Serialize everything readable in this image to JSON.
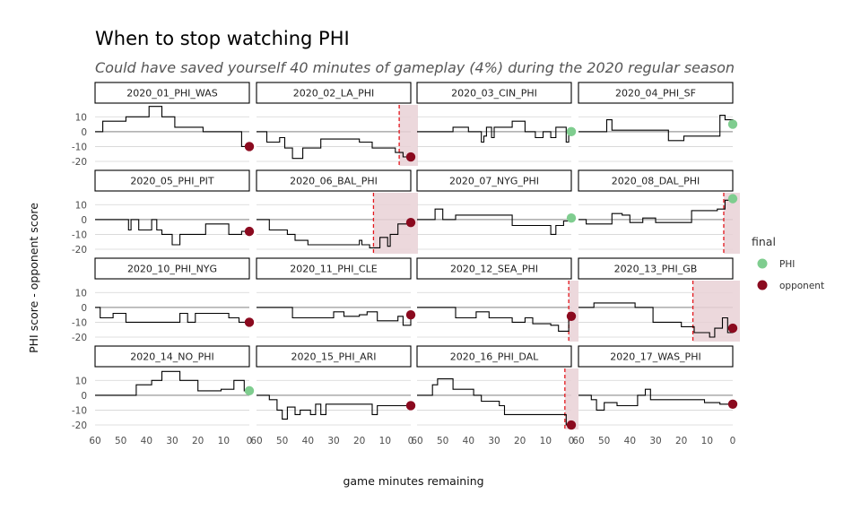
{
  "chart_data": {
    "type": "line",
    "title": "When to stop watching PHI",
    "subtitle": "Could have saved yourself 40 minutes of gameplay (4%) during the 2020 regular season",
    "xlabel": "game minutes remaining",
    "ylabel": "PHI score - opponent score",
    "xlim": [
      60,
      0
    ],
    "ylim": [
      -23,
      18
    ],
    "x_ticks": [
      60,
      50,
      40,
      30,
      20,
      10,
      0
    ],
    "y_ticks": [
      10,
      0,
      -10,
      -20
    ],
    "grid": "horizontal",
    "legend": {
      "title": "final",
      "placement": "right",
      "entries": [
        {
          "label": "PHI",
          "color": "#7fcd8f"
        },
        {
          "label": "opponent",
          "color": "#8b0a1f"
        }
      ]
    },
    "colors": {
      "line": "#000000",
      "cutoff": "#e3161c",
      "shade": "#e9d1d6",
      "zero_line": "#9a9a9a"
    },
    "panels": [
      {
        "name": "2020_01_PHI_WAS",
        "final": "opponent",
        "cutoff": null,
        "steps": [
          [
            60,
            0
          ],
          [
            57,
            7
          ],
          [
            48,
            10
          ],
          [
            39,
            17
          ],
          [
            34,
            10
          ],
          [
            29,
            3
          ],
          [
            20,
            3
          ],
          [
            18,
            0
          ],
          [
            3,
            -10
          ],
          [
            0,
            -10
          ]
        ]
      },
      {
        "name": "2020_02_LA_PHI",
        "final": "opponent",
        "cutoff": 4.5,
        "steps": [
          [
            60,
            0
          ],
          [
            56,
            -7
          ],
          [
            51,
            -4
          ],
          [
            49,
            -11
          ],
          [
            46,
            -18
          ],
          [
            42,
            -11
          ],
          [
            35,
            -5
          ],
          [
            20,
            -7
          ],
          [
            15,
            -11
          ],
          [
            10,
            -11
          ],
          [
            6,
            -14
          ],
          [
            3,
            -17
          ],
          [
            0,
            -17
          ]
        ]
      },
      {
        "name": "2020_03_CIN_PHI",
        "final": "PHI",
        "cutoff": null,
        "steps": [
          [
            60,
            0
          ],
          [
            46,
            3
          ],
          [
            40,
            0
          ],
          [
            35,
            -7
          ],
          [
            34,
            -3
          ],
          [
            33,
            3
          ],
          [
            31,
            -4
          ],
          [
            30,
            3
          ],
          [
            26,
            3
          ],
          [
            23,
            7
          ],
          [
            18,
            0
          ],
          [
            14,
            -4
          ],
          [
            11,
            0
          ],
          [
            8,
            -4
          ],
          [
            6,
            3
          ],
          [
            4,
            3
          ],
          [
            2,
            -7
          ],
          [
            1,
            0
          ],
          [
            0,
            0
          ]
        ]
      },
      {
        "name": "2020_04_PHI_SF",
        "final": "PHI",
        "cutoff": null,
        "steps": [
          [
            60,
            0
          ],
          [
            49,
            8
          ],
          [
            47,
            1
          ],
          [
            25,
            -6
          ],
          [
            19,
            -3
          ],
          [
            5,
            11
          ],
          [
            3,
            8
          ],
          [
            0,
            5
          ]
        ]
      },
      {
        "name": "2020_05_PHI_PIT",
        "final": "opponent",
        "cutoff": null,
        "steps": [
          [
            60,
            0
          ],
          [
            47,
            -7
          ],
          [
            46,
            0
          ],
          [
            43,
            -7
          ],
          [
            38,
            0
          ],
          [
            36,
            -7
          ],
          [
            34,
            -10
          ],
          [
            30,
            -17
          ],
          [
            27,
            -10
          ],
          [
            18,
            -10
          ],
          [
            17,
            -3
          ],
          [
            10,
            -3
          ],
          [
            8,
            -10
          ],
          [
            3,
            -8
          ],
          [
            0,
            -8
          ]
        ]
      },
      {
        "name": "2020_06_BAL_PHI",
        "final": "opponent",
        "cutoff": 14.5,
        "steps": [
          [
            60,
            0
          ],
          [
            55,
            -7
          ],
          [
            48,
            -10
          ],
          [
            45,
            -14
          ],
          [
            40,
            -17
          ],
          [
            22,
            -17
          ],
          [
            20,
            -14
          ],
          [
            19,
            -17
          ],
          [
            16,
            -19
          ],
          [
            12,
            -12
          ],
          [
            9,
            -18
          ],
          [
            8,
            -10
          ],
          [
            5,
            -3
          ],
          [
            0,
            -2
          ]
        ]
      },
      {
        "name": "2020_07_NYG_PHI",
        "final": "PHI",
        "cutoff": null,
        "steps": [
          [
            60,
            0
          ],
          [
            53,
            7
          ],
          [
            50,
            0
          ],
          [
            45,
            3
          ],
          [
            23,
            -4
          ],
          [
            8,
            -10
          ],
          [
            6,
            -4
          ],
          [
            3,
            -1
          ],
          [
            0,
            1
          ]
        ]
      },
      {
        "name": "2020_08_DAL_PHI",
        "final": "PHI",
        "cutoff": 3.5,
        "steps": [
          [
            60,
            0
          ],
          [
            57,
            -3
          ],
          [
            50,
            -3
          ],
          [
            47,
            4
          ],
          [
            43,
            3
          ],
          [
            40,
            -2
          ],
          [
            35,
            1
          ],
          [
            30,
            -2
          ],
          [
            20,
            -2
          ],
          [
            16,
            6
          ],
          [
            6,
            7
          ],
          [
            3,
            13
          ],
          [
            0,
            14
          ]
        ]
      },
      {
        "name": "2020_10_PHI_NYG",
        "final": "opponent",
        "cutoff": null,
        "steps": [
          [
            60,
            0
          ],
          [
            58,
            -7
          ],
          [
            53,
            -4
          ],
          [
            48,
            -10
          ],
          [
            29,
            -10
          ],
          [
            27,
            -4
          ],
          [
            24,
            -10
          ],
          [
            21,
            -4
          ],
          [
            8,
            -7
          ],
          [
            4,
            -10
          ],
          [
            0,
            -10
          ]
        ]
      },
      {
        "name": "2020_11_PHI_CLE",
        "final": "opponent",
        "cutoff": null,
        "steps": [
          [
            60,
            0
          ],
          [
            46,
            -7
          ],
          [
            33,
            -7
          ],
          [
            30,
            -3
          ],
          [
            26,
            -6
          ],
          [
            20,
            -5
          ],
          [
            17,
            -3
          ],
          [
            13,
            -9
          ],
          [
            7,
            -9
          ],
          [
            5,
            -6
          ],
          [
            3,
            -12
          ],
          [
            0,
            -5
          ]
        ]
      },
      {
        "name": "2020_12_SEA_PHI",
        "final": "opponent",
        "cutoff": 1,
        "steps": [
          [
            60,
            0
          ],
          [
            45,
            -7
          ],
          [
            37,
            -3
          ],
          [
            32,
            -7
          ],
          [
            23,
            -10
          ],
          [
            18,
            -7
          ],
          [
            15,
            -11
          ],
          [
            8,
            -12
          ],
          [
            5,
            -16
          ],
          [
            1,
            -7
          ],
          [
            0,
            -6
          ]
        ]
      },
      {
        "name": "2020_13_PHI_GB",
        "final": "opponent",
        "cutoff": 15.5,
        "steps": [
          [
            60,
            0
          ],
          [
            54,
            3
          ],
          [
            40,
            3
          ],
          [
            38,
            0
          ],
          [
            31,
            -10
          ],
          [
            20,
            -13
          ],
          [
            15,
            -17
          ],
          [
            9,
            -20
          ],
          [
            7,
            -14
          ],
          [
            4,
            -7
          ],
          [
            2,
            -17
          ],
          [
            0,
            -14
          ]
        ]
      },
      {
        "name": "2020_14_NO_PHI",
        "final": "PHI",
        "cutoff": null,
        "steps": [
          [
            60,
            0
          ],
          [
            44,
            7
          ],
          [
            38,
            10
          ],
          [
            34,
            16
          ],
          [
            27,
            10
          ],
          [
            20,
            3
          ],
          [
            11,
            4
          ],
          [
            6,
            10
          ],
          [
            2,
            3
          ],
          [
            0,
            3
          ]
        ]
      },
      {
        "name": "2020_15_PHI_ARI",
        "final": "opponent",
        "cutoff": null,
        "steps": [
          [
            60,
            0
          ],
          [
            55,
            -3
          ],
          [
            52,
            -10
          ],
          [
            50,
            -16
          ],
          [
            48,
            -8
          ],
          [
            45,
            -13
          ],
          [
            43,
            -10
          ],
          [
            39,
            -13
          ],
          [
            37,
            -6
          ],
          [
            35,
            -13
          ],
          [
            33,
            -6
          ],
          [
            16,
            -6
          ],
          [
            15,
            -13
          ],
          [
            13,
            -7
          ],
          [
            0,
            -7
          ]
        ]
      },
      {
        "name": "2020_16_PHI_DAL",
        "final": "opponent",
        "cutoff": 2.5,
        "steps": [
          [
            60,
            0
          ],
          [
            54,
            7
          ],
          [
            52,
            11
          ],
          [
            46,
            4
          ],
          [
            38,
            0
          ],
          [
            35,
            -4
          ],
          [
            28,
            -7
          ],
          [
            26,
            -13
          ],
          [
            4,
            -13
          ],
          [
            2,
            -20
          ],
          [
            0,
            -20
          ]
        ]
      },
      {
        "name": "2020_17_WAS_PHI",
        "final": "opponent",
        "cutoff": null,
        "steps": [
          [
            60,
            0
          ],
          [
            55,
            -3
          ],
          [
            53,
            -10
          ],
          [
            50,
            -5
          ],
          [
            45,
            -7
          ],
          [
            37,
            0
          ],
          [
            34,
            4
          ],
          [
            32,
            -3
          ],
          [
            11,
            -5
          ],
          [
            5,
            -6
          ],
          [
            0,
            -6
          ]
        ]
      }
    ]
  }
}
